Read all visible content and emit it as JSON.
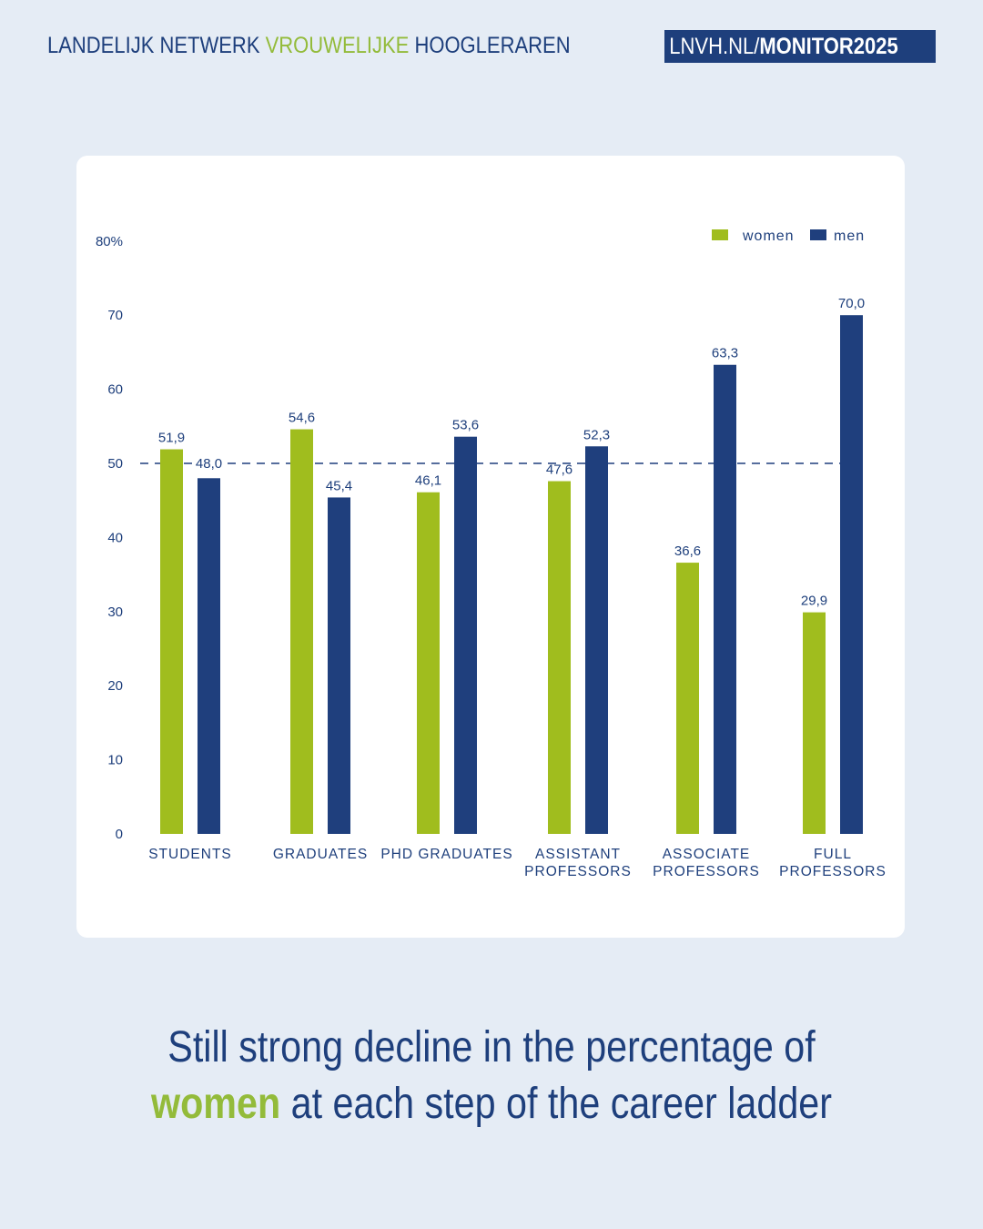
{
  "header": {
    "org_part1": "LANDELIJK NETWERK",
    "org_accent": "VROUWELIJKE",
    "org_part2": "HOOGLERAREN",
    "link_normal": "LNVH.NL/",
    "link_bold": "MONITOR2025"
  },
  "colors": {
    "background": "#e5ecf5",
    "primary": "#1e3f7c",
    "accent": "#93bb3a",
    "women": "#a0bd1e",
    "men": "#1f3f7d"
  },
  "caption": {
    "line1": "Still strong decline in the percentage of",
    "line2_highlight": "women",
    "line2_rest": " at each step of the career ladder"
  },
  "chart_data": {
    "type": "bar",
    "title": "",
    "xlabel": "",
    "ylabel": "",
    "ylim": [
      0,
      80
    ],
    "y_ticks": [
      "0",
      "10",
      "20",
      "30",
      "40",
      "50",
      "60",
      "70",
      "80%"
    ],
    "y_tick_values": [
      0,
      10,
      20,
      30,
      40,
      50,
      60,
      70,
      80
    ],
    "reference_line": {
      "value": 50,
      "style": "dashed"
    },
    "grid": false,
    "legend_position": "top-right",
    "categories": [
      [
        "STUDENTS"
      ],
      [
        "GRADUATES"
      ],
      [
        "PHD GRADUATES"
      ],
      [
        "ASSISTANT",
        "PROFESSORS"
      ],
      [
        "ASSOCIATE",
        "PROFESSORS"
      ],
      [
        "FULL",
        "PROFESSORS"
      ]
    ],
    "series": [
      {
        "name": "women",
        "values": [
          51.9,
          54.6,
          46.1,
          47.6,
          36.6,
          29.9
        ],
        "labels": [
          "51,9",
          "54,6",
          "46,1",
          "47,6",
          "36,6",
          "29,9"
        ]
      },
      {
        "name": "men",
        "values": [
          48.0,
          45.4,
          53.6,
          52.3,
          63.3,
          70.0
        ],
        "labels": [
          "48,0",
          "45,4",
          "53,6",
          "52,3",
          "63,3",
          "70,0"
        ]
      }
    ]
  }
}
